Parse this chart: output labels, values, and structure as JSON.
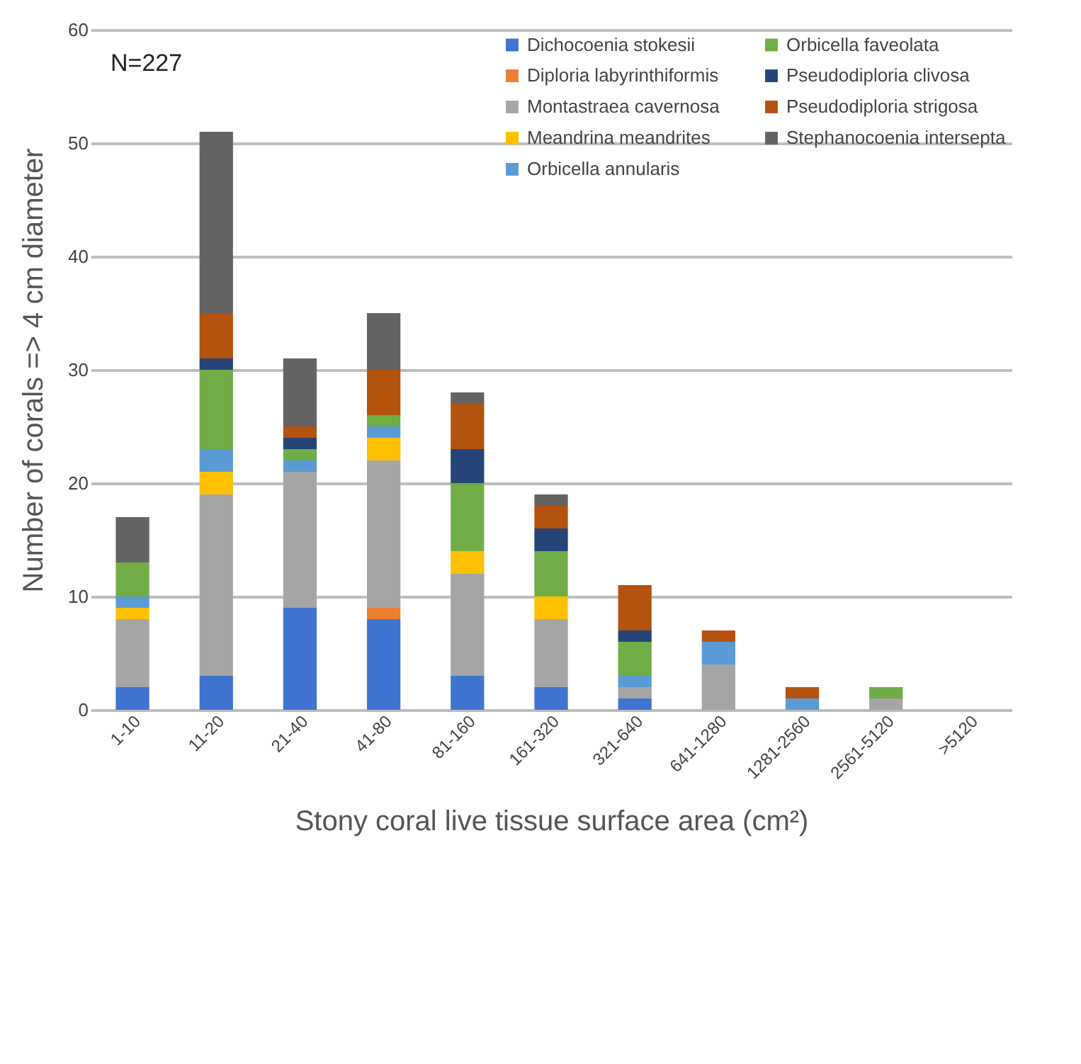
{
  "chart_data": {
    "type": "bar",
    "stacked": true,
    "xlabel": "Stony coral live tissue surface area (cm²)",
    "ylabel": "Number of corals => 4 cm diameter",
    "annotations": [
      "N=227"
    ],
    "categories": [
      "1-10",
      "11-20",
      "21-40",
      "41-80",
      "81-160",
      "161-320",
      "321-640",
      "641-1280",
      "1281-2560",
      "2561-5120",
      ">5120"
    ],
    "series": [
      {
        "name": "Dichocoenia stokesii",
        "color": "#3f74d0",
        "values": [
          2,
          3,
          9,
          8,
          3,
          2,
          1,
          0,
          0,
          0,
          0
        ]
      },
      {
        "name": "Diploria labyrinthiformis",
        "color": "#ed7d31",
        "values": [
          0,
          0,
          0,
          1,
          0,
          0,
          0,
          0,
          0,
          0,
          0
        ]
      },
      {
        "name": "Montastraea cavernosa",
        "color": "#a5a5a5",
        "values": [
          6,
          16,
          12,
          13,
          9,
          6,
          1,
          4,
          0,
          1,
          0
        ]
      },
      {
        "name": "Meandrina meandrites",
        "color": "#ffc000",
        "values": [
          1,
          2,
          0,
          2,
          2,
          2,
          0,
          0,
          0,
          0,
          0
        ]
      },
      {
        "name": "Orbicella annularis",
        "color": "#5b9bd5",
        "values": [
          1,
          2,
          1,
          1,
          0,
          0,
          1,
          2,
          1,
          0,
          0
        ]
      },
      {
        "name": "Orbicella faveolata",
        "color": "#70ad47",
        "values": [
          3,
          7,
          1,
          1,
          6,
          4,
          3,
          0,
          0,
          1,
          0
        ]
      },
      {
        "name": "Pseudodiploria clivosa",
        "color": "#264478",
        "values": [
          0,
          1,
          1,
          0,
          3,
          2,
          1,
          0,
          0,
          0,
          0
        ]
      },
      {
        "name": "Pseudodiploria strigosa",
        "color": "#b4520f",
        "values": [
          0,
          4,
          1,
          4,
          4,
          2,
          4,
          1,
          1,
          0,
          0
        ]
      },
      {
        "name": "Stephanocoenia intersepta",
        "color": "#636363",
        "values": [
          4,
          16,
          6,
          5,
          1,
          1,
          0,
          0,
          0,
          0,
          0
        ]
      }
    ],
    "ylim": [
      0,
      60
    ],
    "yticks": [
      0,
      10,
      20,
      30,
      40,
      50,
      60
    ],
    "grid": "y",
    "legend": "top right"
  }
}
